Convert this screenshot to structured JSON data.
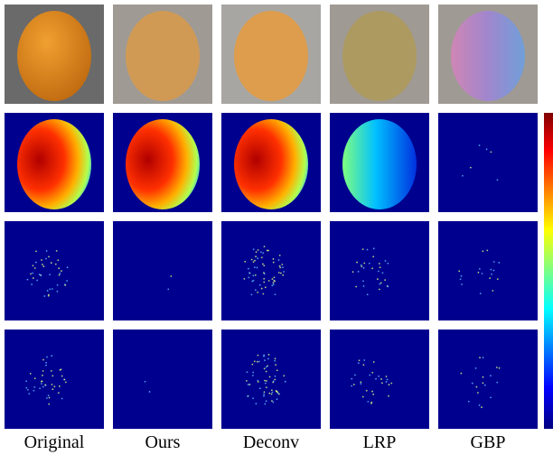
{
  "columns": [
    "Original",
    "Ours",
    "Deconv",
    "LRP",
    "GBP"
  ]
}
